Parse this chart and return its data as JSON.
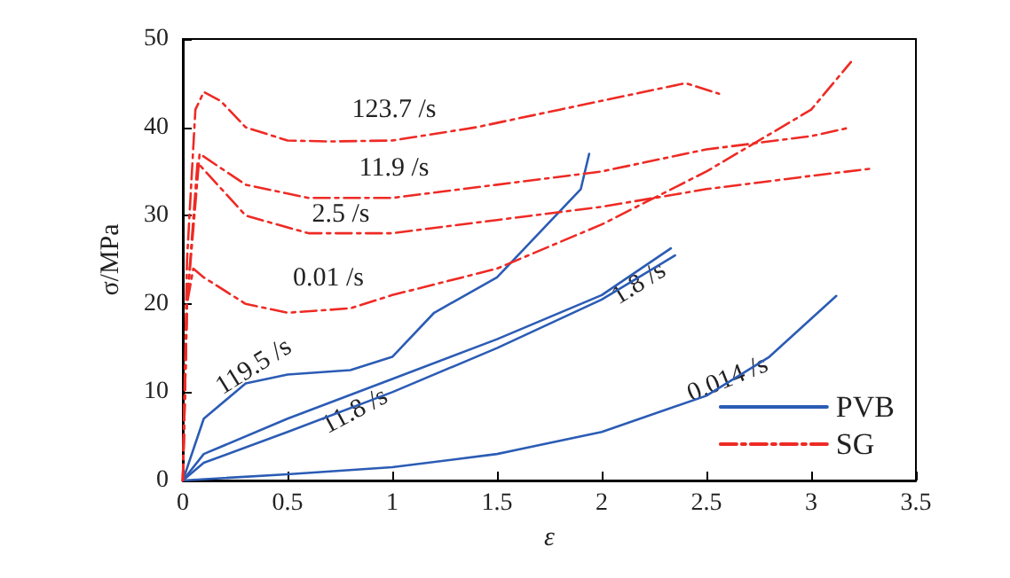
{
  "chart_data": {
    "type": "line",
    "xlabel": "ε",
    "ylabel": "σ/MPa",
    "xlim": [
      0,
      3.5
    ],
    "xticks": [
      0,
      0.5,
      1,
      1.5,
      2,
      2.5,
      3,
      3.5
    ],
    "ylim": [
      0,
      50
    ],
    "yticks": [
      0,
      10,
      20,
      30,
      40,
      50
    ],
    "grid": false,
    "marker": "none",
    "legend": "bottom right",
    "series": [
      {
        "name": "PVB",
        "color": "#2b5cb5",
        "line_style": "solid",
        "x": [
          0,
          0.1,
          0.3,
          0.5,
          0.8,
          1.0,
          1.2,
          1.5,
          1.7,
          1.9,
          1.94
        ],
        "values": [
          0,
          7,
          11,
          12,
          12.5,
          14,
          19,
          23,
          28,
          33,
          37
        ]
      },
      {
        "color": "#2b5cb5",
        "line_style": "solid",
        "x": [
          0,
          0.1,
          0.5,
          1.0,
          1.5,
          2.0,
          2.33
        ],
        "values": [
          0,
          3,
          7,
          11.5,
          16,
          21,
          26.3
        ]
      },
      {
        "color": "#2b5cb5",
        "line_style": "solid",
        "x": [
          0,
          0.1,
          0.5,
          1.0,
          1.5,
          2.0,
          2.35
        ],
        "values": [
          0,
          2,
          5.5,
          10,
          15,
          20.5,
          25.5
        ]
      },
      {
        "color": "#2b5cb5",
        "line_style": "solid",
        "x": [
          0,
          0.5,
          1.0,
          1.5,
          2.0,
          2.5,
          2.8,
          3.12
        ],
        "values": [
          0,
          0.7,
          1.5,
          3,
          5.5,
          9.6,
          14,
          20.9
        ]
      },
      {
        "name": "SG",
        "color": "#ee2a24",
        "line_style": "dashed",
        "x": [
          0,
          0.02,
          0.06,
          0.1,
          0.18,
          0.3,
          0.5,
          0.7,
          1.0,
          1.4,
          1.8,
          2.2,
          2.4,
          2.56
        ],
        "values": [
          0,
          25,
          42,
          44,
          43,
          40,
          38.5,
          38.4,
          38.5,
          40,
          42,
          44,
          45,
          43.8
        ]
      },
      {
        "color": "#ee2a24",
        "line_style": "dashed",
        "x": [
          0,
          0.02,
          0.08,
          0.3,
          0.6,
          1.0,
          1.5,
          2.0,
          2.5,
          3.0,
          3.19
        ],
        "values": [
          0,
          20,
          37,
          33.5,
          32,
          32,
          33.5,
          35,
          37.5,
          39,
          40
        ]
      },
      {
        "color": "#ee2a24",
        "line_style": "dashed",
        "x": [
          0,
          0.02,
          0.07,
          0.3,
          0.6,
          1.0,
          1.5,
          2.0,
          2.5,
          3.0,
          3.28
        ],
        "values": [
          0,
          20,
          36,
          30,
          28,
          28,
          29.5,
          31,
          33,
          34.5,
          35.3
        ]
      },
      {
        "color": "#ee2a24",
        "line_style": "dashed",
        "x": [
          0,
          0.02,
          0.05,
          0.1,
          0.3,
          0.5,
          0.8,
          1.0,
          1.5,
          2.0,
          2.5,
          3.0,
          3.19
        ],
        "values": [
          0,
          20,
          24,
          23,
          20,
          19,
          19.5,
          21,
          24,
          29,
          35,
          42,
          47.4
        ]
      }
    ],
    "annotations": [
      "123.7 /s",
      "11.9 /s",
      "2.5 /s",
      "0.01 /s",
      "119.5 /s",
      "11.8 /s",
      "1.8 /s",
      "0.014 /s"
    ]
  }
}
